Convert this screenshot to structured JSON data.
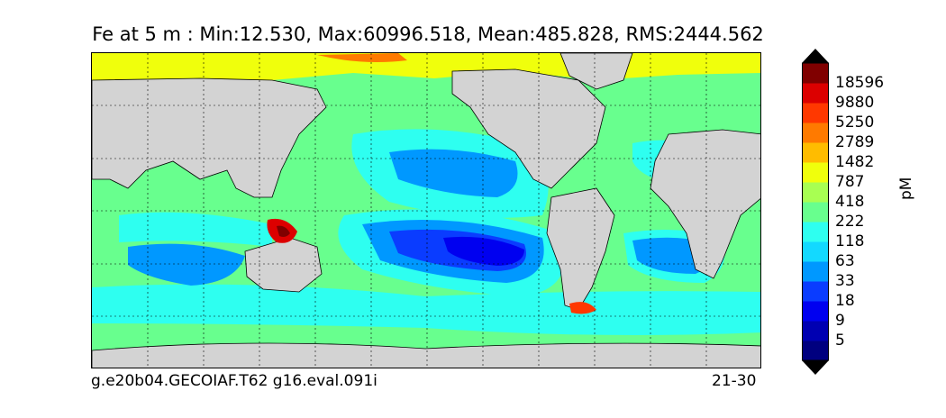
{
  "title": "Fe at 5 m : Min:12.530, Max:60996.518, Mean:485.828, RMS:2444.562",
  "caption_left": "g.e20b04.GECOIAF.T62 g16.eval.091i",
  "caption_right": "21-30",
  "colorbar": {
    "unit": "pM",
    "levels": [
      {
        "label": "",
        "color": "#00007f"
      },
      {
        "label": "5",
        "color": "#0000b2"
      },
      {
        "label": "9",
        "color": "#0000f0"
      },
      {
        "label": "18",
        "color": "#0a3cff"
      },
      {
        "label": "33",
        "color": "#0098ff"
      },
      {
        "label": "63",
        "color": "#13d9ff"
      },
      {
        "label": "118",
        "color": "#2efff0"
      },
      {
        "label": "222",
        "color": "#68ff8e"
      },
      {
        "label": "418",
        "color": "#a8ff52"
      },
      {
        "label": "787",
        "color": "#f0ff0c"
      },
      {
        "label": "1482",
        "color": "#ffbc00"
      },
      {
        "label": "2789",
        "color": "#ff7a00"
      },
      {
        "label": "5250",
        "color": "#ff3800"
      },
      {
        "label": "9880",
        "color": "#dc0000"
      },
      {
        "label": "18596",
        "color": "#800000"
      }
    ]
  }
}
